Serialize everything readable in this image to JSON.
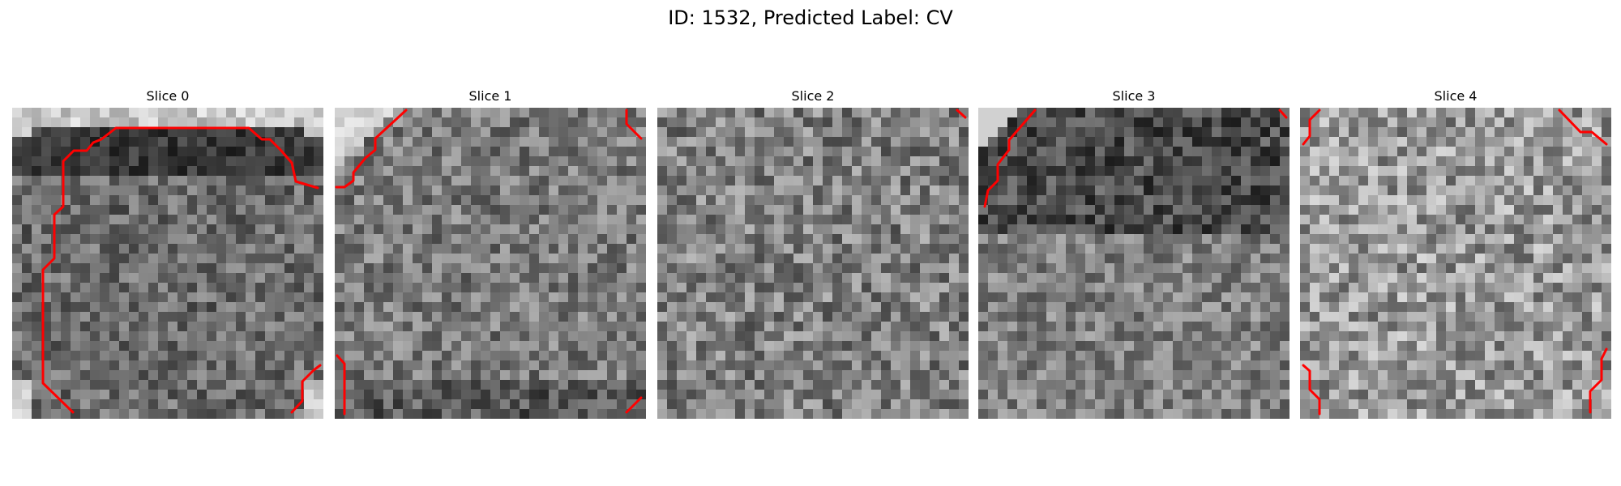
{
  "figure": {
    "title": "ID: 1532, Predicted Label: CV",
    "colors": {
      "contour": "#ff0000",
      "background": "#ffffff"
    },
    "colormap": "gray",
    "panels": [
      {
        "title": "Slice 0"
      },
      {
        "title": "Slice 1"
      },
      {
        "title": "Slice 2"
      },
      {
        "title": "Slice 3"
      },
      {
        "title": "Slice 4"
      }
    ]
  }
}
